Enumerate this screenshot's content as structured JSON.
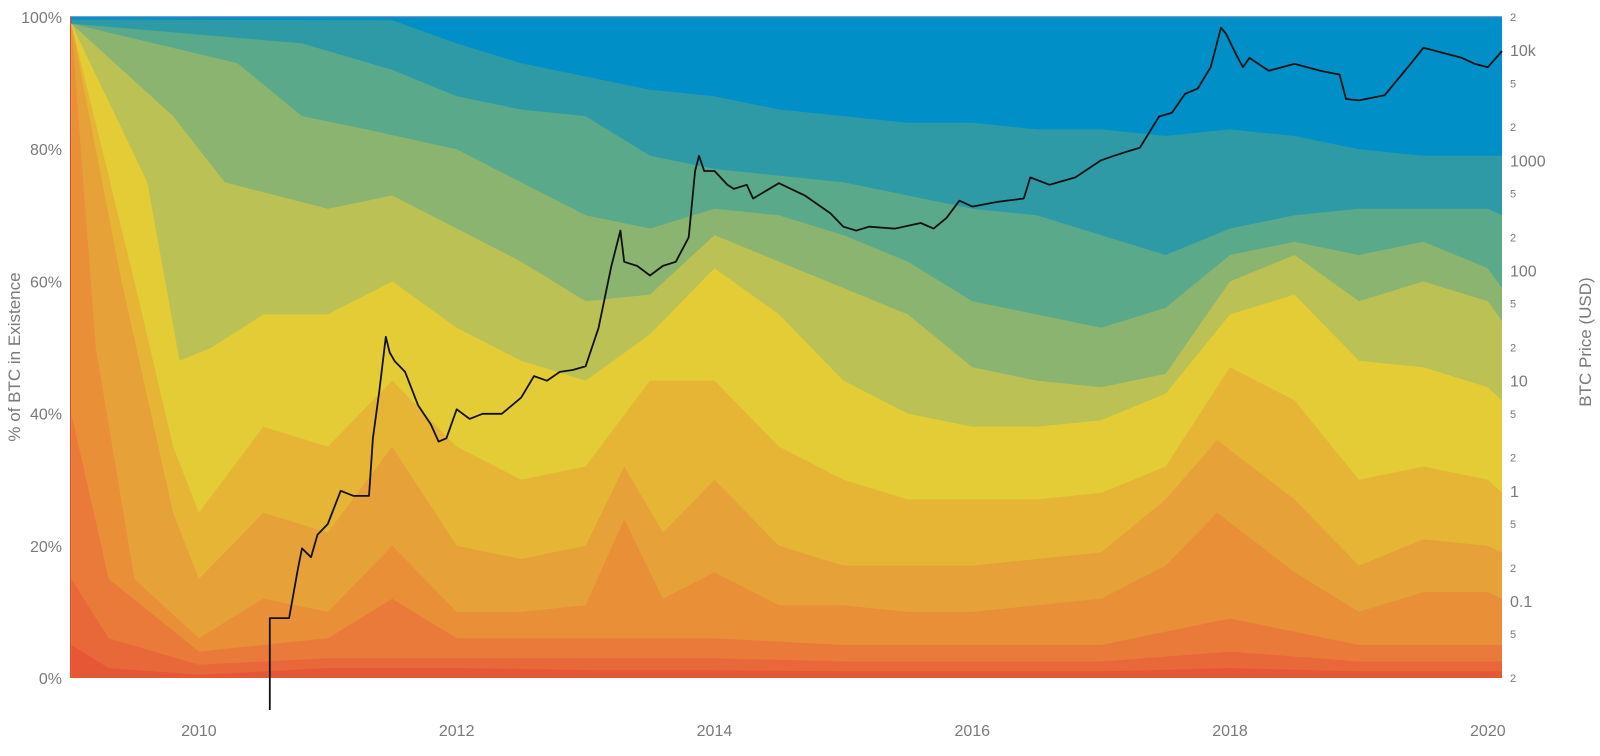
{
  "chart_data": {
    "type": "area",
    "subtype": "stacked-percent-area-with-log-price-overlay",
    "title": "",
    "xlabel": "",
    "ylabel_left": "% of BTC in Existence",
    "ylabel_right": "BTC Price (USD)",
    "x_range": [
      "2009-01-03",
      "2020-02-10"
    ],
    "x_ticks": [
      "2010",
      "2012",
      "2014",
      "2016",
      "2018",
      "2020"
    ],
    "x_tick_years": [
      2010,
      2012,
      2014,
      2016,
      2018,
      2020
    ],
    "ylim_left": [
      0,
      100
    ],
    "y_left_ticks": [
      "0%",
      "20%",
      "40%",
      "60%",
      "80%",
      "100%"
    ],
    "y_left_tick_values": [
      0,
      20,
      40,
      60,
      80,
      100
    ],
    "y_right_scale": "log",
    "ylim_right": [
      0.02,
      20000
    ],
    "y_right_major_ticks": [
      {
        "label": "0.1",
        "value": 0.1
      },
      {
        "label": "1",
        "value": 1
      },
      {
        "label": "10",
        "value": 10
      },
      {
        "label": "100",
        "value": 100
      },
      {
        "label": "1000",
        "value": 1000
      },
      {
        "label": "10k",
        "value": 10000
      }
    ],
    "y_right_minor_ticks": [
      {
        "label": "2",
        "value": 0.02
      },
      {
        "label": "5",
        "value": 0.05
      },
      {
        "label": "2",
        "value": 0.2
      },
      {
        "label": "5",
        "value": 0.5
      },
      {
        "label": "2",
        "value": 2
      },
      {
        "label": "5",
        "value": 5
      },
      {
        "label": "2",
        "value": 20
      },
      {
        "label": "5",
        "value": 50
      },
      {
        "label": "2",
        "value": 200
      },
      {
        "label": "5",
        "value": 500
      },
      {
        "label": "2",
        "value": 2000
      },
      {
        "label": "5",
        "value": 5000
      },
      {
        "label": "2",
        "value": 20000
      }
    ],
    "grid": {
      "vertical": true,
      "horizontal": false
    },
    "legend": "none",
    "band_colors": [
      "#e65735",
      "#e8683a",
      "#ea7a3a",
      "#e88f38",
      "#e6a238",
      "#e6b536",
      "#e3cc35",
      "#bcc155",
      "#8ab46f",
      "#5aa98a",
      "#2e9aa6",
      "#0090c7"
    ],
    "band_boundaries": [
      {
        "x": [
          2009.01,
          2009.3,
          2010,
          2011,
          2012,
          2013,
          2014,
          2015,
          2016,
          2017,
          2018,
          2019,
          2020,
          2020.11
        ],
        "y": [
          5,
          1.5,
          0.5,
          1.5,
          1.5,
          1.2,
          1.2,
          1,
          1,
          1,
          1.5,
          1,
          1,
          1
        ]
      },
      {
        "x": [
          2009.01,
          2009.3,
          2010,
          2011,
          2012,
          2013,
          2014,
          2015,
          2016,
          2017,
          2018,
          2019,
          2020,
          2020.11
        ],
        "y": [
          15,
          6,
          2,
          3,
          3,
          3,
          3,
          2.5,
          2.5,
          2.5,
          4,
          2.5,
          2.5,
          2.5
        ]
      },
      {
        "x": [
          2009.01,
          2009.3,
          2010,
          2011,
          2011.5,
          2012,
          2013,
          2014,
          2015,
          2016,
          2017,
          2018,
          2019,
          2020,
          2020.11
        ],
        "y": [
          40,
          15,
          4,
          6,
          12,
          6,
          6,
          6,
          5,
          5,
          5,
          9,
          5,
          5,
          5
        ]
      },
      {
        "x": [
          2009.01,
          2009.2,
          2009.5,
          2010,
          2010.5,
          2011,
          2011.5,
          2012,
          2012.5,
          2013,
          2013.3,
          2013.6,
          2014,
          2014.5,
          2015,
          2015.5,
          2016,
          2016.5,
          2017,
          2017.5,
          2017.9,
          2018.5,
          2019,
          2019.5,
          2020,
          2020.11
        ],
        "y": [
          99,
          50,
          15,
          6,
          12,
          10,
          20,
          10,
          10,
          11,
          24,
          12,
          16,
          11,
          11,
          10,
          10,
          11,
          12,
          17,
          25,
          16,
          10,
          13,
          13,
          12
        ]
      },
      {
        "x": [
          2009.01,
          2009.4,
          2009.8,
          2010,
          2010.5,
          2011,
          2011.5,
          2012,
          2012.5,
          2013,
          2013.3,
          2013.6,
          2014,
          2014.5,
          2015,
          2015.5,
          2016,
          2016.5,
          2017,
          2017.5,
          2017.9,
          2018.5,
          2019,
          2019.5,
          2020,
          2020.11
        ],
        "y": [
          99,
          60,
          25,
          15,
          25,
          22,
          35,
          20,
          18,
          20,
          32,
          22,
          30,
          20,
          17,
          17,
          17,
          18,
          19,
          27,
          36,
          27,
          17,
          21,
          20,
          19
        ]
      },
      {
        "x": [
          2009.01,
          2009.5,
          2009.8,
          2010,
          2010.5,
          2011,
          2011.5,
          2012,
          2012.5,
          2013,
          2013.5,
          2014,
          2014.5,
          2015,
          2015.5,
          2016,
          2016.5,
          2017,
          2017.5,
          2018,
          2018.5,
          2019,
          2019.5,
          2020,
          2020.11
        ],
        "y": [
          99,
          60,
          35,
          25,
          38,
          35,
          45,
          35,
          30,
          32,
          45,
          45,
          35,
          30,
          27,
          27,
          27,
          28,
          32,
          47,
          42,
          30,
          32,
          30,
          28
        ]
      },
      {
        "x": [
          2009.01,
          2009.6,
          2009.85,
          2010.1,
          2010.5,
          2011,
          2011.5,
          2012,
          2012.5,
          2013,
          2013.5,
          2014,
          2014.5,
          2015,
          2015.5,
          2016,
          2016.5,
          2017,
          2017.5,
          2018,
          2018.5,
          2019,
          2019.5,
          2020,
          2020.11
        ],
        "y": [
          99,
          75,
          48,
          50,
          55,
          55,
          60,
          53,
          48,
          45,
          52,
          62,
          55,
          45,
          40,
          38,
          38,
          39,
          43,
          55,
          58,
          48,
          47,
          44,
          42
        ]
      },
      {
        "x": [
          2009.01,
          2009.8,
          2010.2,
          2010.6,
          2011,
          2011.5,
          2012,
          2012.5,
          2013,
          2013.5,
          2014,
          2014.5,
          2015,
          2015.5,
          2016,
          2016.5,
          2017,
          2017.5,
          2018,
          2018.5,
          2019,
          2019.5,
          2020,
          2020.11
        ],
        "y": [
          99,
          85,
          75,
          73,
          71,
          73,
          68,
          63,
          57,
          58,
          67,
          63,
          59,
          55,
          47,
          45,
          44,
          46,
          60,
          64,
          57,
          60,
          57,
          54
        ]
      },
      {
        "x": [
          2009.01,
          2010.3,
          2010.8,
          2011.3,
          2012,
          2012.5,
          2013,
          2013.5,
          2014,
          2014.5,
          2015,
          2015.5,
          2016,
          2016.5,
          2017,
          2017.5,
          2018,
          2018.5,
          2019,
          2019.5,
          2020,
          2020.11
        ],
        "y": [
          99,
          93,
          85,
          83,
          80,
          75,
          70,
          68,
          71,
          70,
          67,
          63,
          57,
          55,
          53,
          56,
          64,
          66,
          64,
          66,
          62,
          59
        ]
      },
      {
        "x": [
          2009.01,
          2010.8,
          2011.5,
          2012,
          2012.5,
          2013,
          2013.5,
          2014,
          2014.5,
          2015,
          2015.5,
          2016,
          2016.5,
          2017,
          2017.5,
          2018,
          2018.5,
          2019,
          2019.5,
          2020,
          2020.11
        ],
        "y": [
          99,
          96,
          92,
          88,
          86,
          85,
          79,
          77,
          76,
          75,
          73,
          71,
          70,
          67,
          64,
          68,
          70,
          71,
          71,
          71,
          70
        ]
      },
      {
        "x": [
          2009.01,
          2011.5,
          2012,
          2012.5,
          2013,
          2013.5,
          2014,
          2014.5,
          2015,
          2015.5,
          2016,
          2016.5,
          2017,
          2017.5,
          2018,
          2018.5,
          2019,
          2019.5,
          2020,
          2020.11
        ],
        "y": [
          99.6,
          99.5,
          96,
          93,
          91,
          89,
          88,
          86,
          85,
          84,
          84,
          83,
          83,
          82,
          83,
          82,
          80,
          79,
          79,
          79
        ]
      }
    ],
    "series": [
      {
        "type": "line",
        "axis": "right",
        "color": "#111111",
        "x": [
          2010.55,
          2010.55,
          2010.62,
          2010.7,
          2010.77,
          2010.8,
          2010.87,
          2010.92,
          2011.0,
          2011.1,
          2011.2,
          2011.32,
          2011.35,
          2011.4,
          2011.45,
          2011.48,
          2011.52,
          2011.6,
          2011.7,
          2011.8,
          2011.86,
          2011.92,
          2012.0,
          2012.1,
          2012.2,
          2012.35,
          2012.5,
          2012.6,
          2012.7,
          2012.8,
          2012.9,
          2013.0,
          2013.1,
          2013.2,
          2013.27,
          2013.3,
          2013.4,
          2013.5,
          2013.6,
          2013.7,
          2013.8,
          2013.85,
          2013.88,
          2013.92,
          2014.0,
          2014.1,
          2014.15,
          2014.25,
          2014.3,
          2014.5,
          2014.7,
          2014.9,
          2015.0,
          2015.1,
          2015.2,
          2015.4,
          2015.6,
          2015.7,
          2015.8,
          2015.9,
          2016.0,
          2016.2,
          2016.4,
          2016.45,
          2016.6,
          2016.8,
          2017.0,
          2017.1,
          2017.2,
          2017.3,
          2017.45,
          2017.55,
          2017.65,
          2017.75,
          2017.85,
          2017.93,
          2017.97,
          2018.05,
          2018.1,
          2018.15,
          2018.3,
          2018.5,
          2018.7,
          2018.85,
          2018.9,
          2019.0,
          2019.2,
          2019.4,
          2019.5,
          2019.6,
          2019.8,
          2019.9,
          2020.0,
          2020.11
        ],
        "y": [
          0.005,
          0.07,
          0.07,
          0.07,
          0.2,
          0.3,
          0.25,
          0.4,
          0.5,
          1.0,
          0.9,
          0.9,
          3.0,
          8.0,
          25,
          18,
          15,
          12,
          6,
          4,
          2.8,
          3.0,
          5.5,
          4.5,
          5.0,
          5.0,
          7.0,
          11,
          10,
          12,
          12.5,
          13.5,
          30,
          110,
          230,
          120,
          110,
          90,
          110,
          120,
          200,
          800,
          1100,
          800,
          800,
          600,
          550,
          600,
          450,
          620,
          480,
          330,
          250,
          230,
          250,
          240,
          270,
          240,
          300,
          430,
          380,
          420,
          450,
          700,
          600,
          700,
          1000,
          1100,
          1200,
          1300,
          2500,
          2700,
          4000,
          4500,
          7000,
          16000,
          14000,
          9000,
          7000,
          8500,
          6500,
          7500,
          6500,
          6000,
          3600,
          3500,
          3900,
          7500,
          10500,
          9800,
          8500,
          7500,
          7000,
          9800
        ]
      }
    ]
  }
}
